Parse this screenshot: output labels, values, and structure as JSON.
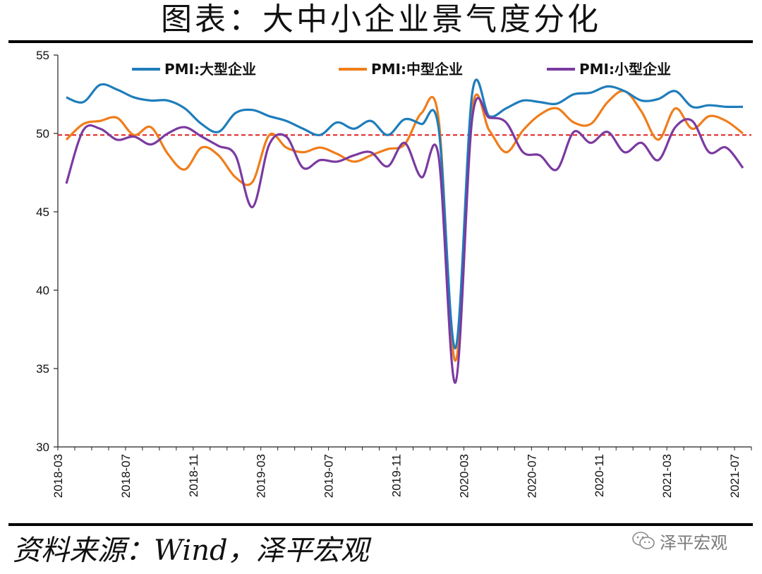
{
  "header": {
    "title": "图表：大中小企业景气度分化"
  },
  "footer": {
    "source": "资料来源：Wind，泽平宏观",
    "watermark_text": "泽平宏观",
    "watermark_icon": "wechat-bubble-icon"
  },
  "colors": {
    "large": "#1f7dbb",
    "medium": "#f07d1a",
    "small": "#7b3aa0",
    "reference": "#e02020",
    "axis": "#222222"
  },
  "chart_data": {
    "type": "line",
    "title": "",
    "xlabel": "",
    "ylabel": "",
    "ylim": [
      30,
      55
    ],
    "yticks": [
      30,
      35,
      40,
      45,
      50,
      55
    ],
    "grid": false,
    "legend_position": "top",
    "xtick_labels": [
      "2018-03",
      "2018-07",
      "2018-11",
      "2019-03",
      "2019-07",
      "2019-11",
      "2020-03",
      "2020-07",
      "2020-11",
      "2021-03",
      "2021-07"
    ],
    "x": [
      "2018-03",
      "2018-04",
      "2018-05",
      "2018-06",
      "2018-07",
      "2018-08",
      "2018-09",
      "2018-10",
      "2018-11",
      "2018-12",
      "2019-01",
      "2019-02",
      "2019-03",
      "2019-04",
      "2019-05",
      "2019-06",
      "2019-07",
      "2019-08",
      "2019-09",
      "2019-10",
      "2019-11",
      "2019-12",
      "2020-01",
      "2020-02",
      "2020-03",
      "2020-04",
      "2020-05",
      "2020-06",
      "2020-07",
      "2020-08",
      "2020-09",
      "2020-10",
      "2020-11",
      "2020-12",
      "2021-01",
      "2021-02",
      "2021-03",
      "2021-04",
      "2021-05",
      "2021-06",
      "2021-07"
    ],
    "reference_line": 49.9,
    "series": [
      {
        "key": "large",
        "name": "PMI:大型企业",
        "values": [
          52.3,
          52.0,
          53.1,
          52.8,
          52.3,
          52.1,
          52.1,
          51.6,
          50.6,
          50.1,
          51.3,
          51.5,
          51.1,
          50.8,
          50.3,
          49.9,
          50.7,
          50.3,
          50.8,
          49.9,
          50.9,
          50.6,
          50.4,
          36.3,
          52.6,
          51.1,
          51.6,
          52.1,
          52.0,
          51.9,
          52.5,
          52.6,
          53.0,
          52.7,
          52.1,
          52.2,
          52.7,
          51.7,
          51.8,
          51.7,
          51.7
        ]
      },
      {
        "key": "medium",
        "name": "PMI:中型企业",
        "values": [
          49.6,
          50.6,
          50.8,
          51.0,
          49.9,
          50.4,
          48.7,
          47.7,
          49.1,
          48.6,
          47.2,
          46.9,
          49.9,
          49.1,
          48.8,
          49.1,
          48.7,
          48.2,
          48.6,
          49.0,
          49.3,
          51.3,
          51.0,
          35.5,
          51.6,
          50.2,
          48.8,
          50.2,
          51.2,
          51.6,
          50.7,
          50.6,
          52.0,
          52.7,
          51.4,
          49.6,
          51.6,
          50.3,
          51.1,
          50.8,
          50.0
        ]
      },
      {
        "key": "small",
        "name": "PMI:小型企业",
        "values": [
          46.8,
          50.2,
          50.3,
          49.6,
          49.8,
          49.3,
          50.0,
          50.4,
          49.8,
          49.2,
          48.6,
          45.3,
          49.3,
          49.8,
          47.8,
          48.3,
          48.2,
          48.6,
          48.8,
          47.9,
          49.4,
          47.2,
          48.6,
          34.1,
          51.0,
          51.0,
          50.7,
          48.8,
          48.6,
          47.7,
          50.1,
          49.4,
          50.1,
          48.8,
          49.4,
          48.3,
          50.4,
          50.8,
          48.8,
          49.1,
          47.8
        ]
      }
    ]
  }
}
